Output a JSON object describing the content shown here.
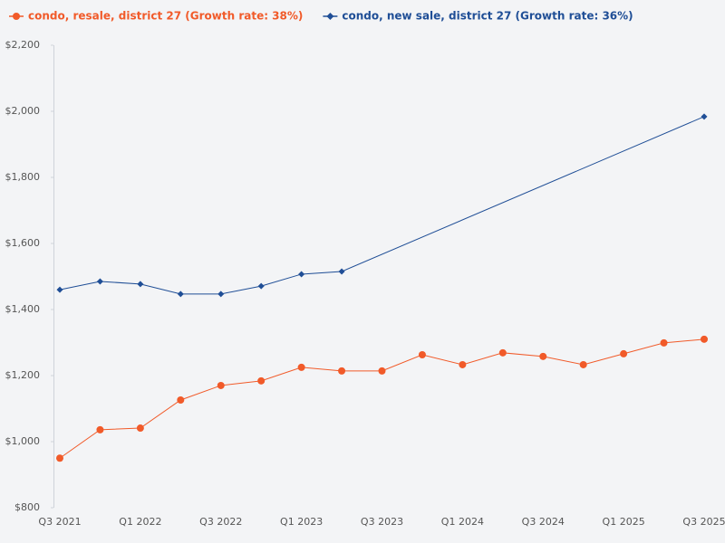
{
  "chart_data": {
    "type": "line",
    "categories": [
      "Q3 2021",
      null,
      "Q1 2022",
      null,
      "Q3 2022",
      null,
      "Q1 2023",
      null,
      "Q3 2023",
      null,
      "Q1 2024",
      null,
      "Q3 2024",
      null,
      "Q1 2025",
      null,
      "Q3 2025"
    ],
    "series": [
      {
        "name": "condo, resale, district 27 (Growth rate: 38%)",
        "color": "#f15a29",
        "marker": "circle",
        "values": [
          950,
          1036,
          1041,
          1126,
          1170,
          1184,
          1225,
          1214,
          1214,
          1263,
          1233,
          1269,
          1258,
          1233,
          1266,
          1299,
          1310
        ]
      },
      {
        "name": "condo, new sale, district 27 (Growth rate: 36%)",
        "color": "#1f4e96",
        "marker": "diamond",
        "values": [
          1460,
          1485,
          1477,
          1447,
          1447,
          1471,
          1507,
          1515,
          null,
          null,
          null,
          null,
          null,
          null,
          null,
          null,
          1984
        ]
      }
    ],
    "ylim": [
      800,
      2200
    ],
    "yticks": [
      {
        "value": 800,
        "label": "$800"
      },
      {
        "value": 1000,
        "label": "$1,000"
      },
      {
        "value": 1200,
        "label": "$1,200"
      },
      {
        "value": 1400,
        "label": "$1,400"
      },
      {
        "value": 1600,
        "label": "$1,600"
      },
      {
        "value": 1800,
        "label": "$1,800"
      },
      {
        "value": 2000,
        "label": "$2,000"
      },
      {
        "value": 2200,
        "label": "$2,200"
      }
    ],
    "span_gaps": true,
    "grid": false,
    "legend": "top"
  }
}
